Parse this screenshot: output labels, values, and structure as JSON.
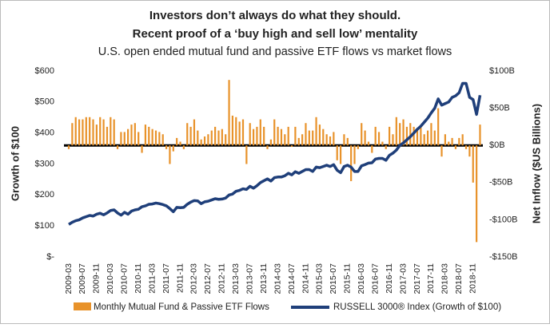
{
  "chart_data": {
    "type": "bar_line",
    "title": [
      "Investors don’t always do what they should.",
      "Recent proof of a ‘buy high and sell low’ mentality"
    ],
    "subtitle": "U.S. open ended mutual fund and passive ETF flows vs market flows",
    "ylabel": "Growth of $100",
    "y2label": "Net Inflow ($US Billions)",
    "categories": [
      "2009-03",
      null,
      null,
      null,
      "2009-07",
      null,
      null,
      null,
      "2009-11",
      null,
      null,
      null,
      "2010-03",
      null,
      null,
      null,
      "2010-07",
      null,
      null,
      null,
      "2010-11",
      null,
      null,
      null,
      "2011-03",
      null,
      null,
      null,
      "2011-07",
      null,
      null,
      null,
      "2011-11",
      null,
      null,
      null,
      "2012-03",
      null,
      null,
      null,
      "2012-07",
      null,
      null,
      null,
      "2012-11",
      null,
      null,
      null,
      "2013-03",
      null,
      null,
      null,
      "2013-07",
      null,
      null,
      null,
      "2013-11",
      null,
      null,
      null,
      "2014-03",
      null,
      null,
      null,
      "2014-07",
      null,
      null,
      null,
      "2014-11",
      null,
      null,
      null,
      "2015-03",
      null,
      null,
      null,
      "2015-07",
      null,
      null,
      null,
      "2015-11",
      null,
      null,
      null,
      "2016-03",
      null,
      null,
      null,
      "2016-07",
      null,
      null,
      null,
      "2016-11",
      null,
      null,
      null,
      "2017-03",
      null,
      null,
      null,
      "2017-07",
      null,
      null,
      null,
      "2017-11",
      null,
      null,
      null,
      "2018-03",
      null,
      null,
      null,
      "2018-07",
      null,
      null,
      null,
      "2018-11",
      null,
      null
    ],
    "series": [
      {
        "name": "Monthly Mutual Fund & Passive ETF Flows",
        "type": "bar",
        "axis": "y2",
        "color": "#e8922a",
        "values": [
          -5,
          30,
          38,
          35,
          35,
          38,
          38,
          35,
          28,
          38,
          35,
          25,
          38,
          35,
          -5,
          18,
          18,
          22,
          28,
          30,
          18,
          -10,
          28,
          25,
          22,
          20,
          18,
          15,
          -5,
          -25,
          -8,
          10,
          5,
          -5,
          30,
          25,
          35,
          20,
          8,
          12,
          15,
          20,
          25,
          20,
          22,
          15,
          88,
          40,
          38,
          32,
          35,
          -25,
          30,
          22,
          25,
          35,
          25,
          -5,
          8,
          35,
          25,
          22,
          15,
          25,
          -2,
          25,
          10,
          15,
          30,
          20,
          20,
          38,
          28,
          22,
          15,
          12,
          18,
          -20,
          -25,
          15,
          10,
          -48,
          -25,
          -5,
          30,
          20,
          5,
          -10,
          25,
          18,
          5,
          -5,
          25,
          15,
          38,
          30,
          35,
          25,
          30,
          25,
          20,
          25,
          15,
          20,
          30,
          20,
          50,
          -15,
          15,
          5,
          10,
          -5,
          10,
          15,
          -5,
          -15,
          -50,
          -130,
          28
        ]
      },
      {
        "name": "RUSSELL 3000® Index (Growth of $100)",
        "type": "line",
        "axis": "y",
        "color": "#1f3f7a",
        "values": [
          105,
          112,
          117,
          120,
          126,
          130,
          134,
          132,
          138,
          141,
          136,
          142,
          150,
          152,
          142,
          135,
          144,
          138,
          148,
          152,
          154,
          162,
          165,
          170,
          171,
          174,
          172,
          169,
          165,
          156,
          146,
          160,
          159,
          160,
          170,
          177,
          182,
          181,
          172,
          178,
          180,
          184,
          188,
          186,
          187,
          190,
          200,
          203,
          212,
          215,
          220,
          218,
          228,
          222,
          230,
          240,
          246,
          252,
          245,
          256,
          258,
          258,
          262,
          270,
          265,
          275,
          270,
          276,
          282,
          282,
          276,
          290,
          288,
          292,
          296,
          292,
          298,
          280,
          272,
          292,
          296,
          290,
          276,
          276,
          294,
          298,
          303,
          304,
          316,
          318,
          318,
          312,
          328,
          335,
          345,
          360,
          368,
          378,
          388,
          400,
          412,
          422,
          435,
          448,
          465,
          480,
          510,
          490,
          495,
          500,
          515,
          520,
          530,
          560,
          560,
          515,
          508,
          460,
          522
        ]
      }
    ],
    "ylim": [
      0,
      600
    ],
    "yticks": [
      {
        "value": 0,
        "label": "$-"
      },
      {
        "value": 100,
        "label": "$100"
      },
      {
        "value": 200,
        "label": "$200"
      },
      {
        "value": 300,
        "label": "$300"
      },
      {
        "value": 400,
        "label": "$400"
      },
      {
        "value": 500,
        "label": "$500"
      },
      {
        "value": 600,
        "label": "$600"
      }
    ],
    "y2lim": [
      -150,
      100
    ],
    "y2ticks": [
      {
        "value": -150,
        "label": "-$150B"
      },
      {
        "value": -100,
        "label": "-$100B"
      },
      {
        "value": -50,
        "label": "-$50B"
      },
      {
        "value": 0,
        "label": "$0B"
      },
      {
        "value": 50,
        "label": "$50B"
      },
      {
        "value": 100,
        "label": "$100B"
      }
    ]
  }
}
